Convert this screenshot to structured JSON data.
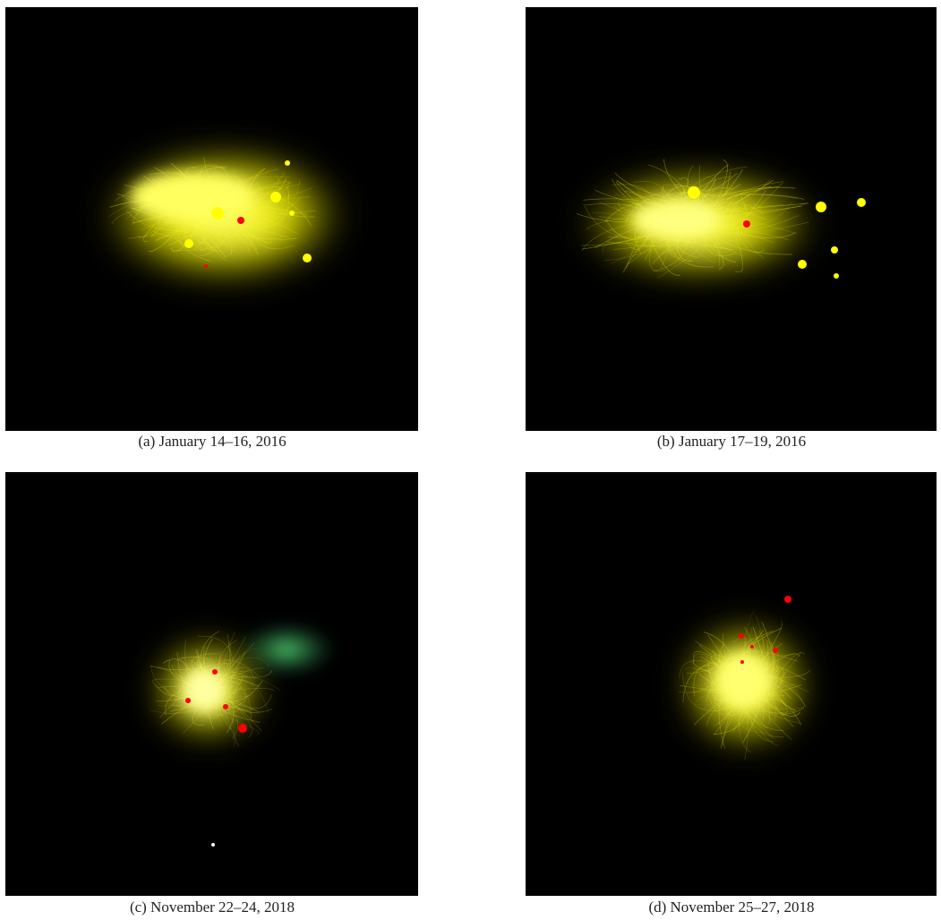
{
  "figure": {
    "panels": [
      {
        "caption": "(a) January 14–16, 2016"
      },
      {
        "caption": "(b) January 17–19, 2016"
      },
      {
        "caption": "(c) November 22–24, 2018"
      },
      {
        "caption": "(d) November 25–27, 2018"
      }
    ]
  }
}
